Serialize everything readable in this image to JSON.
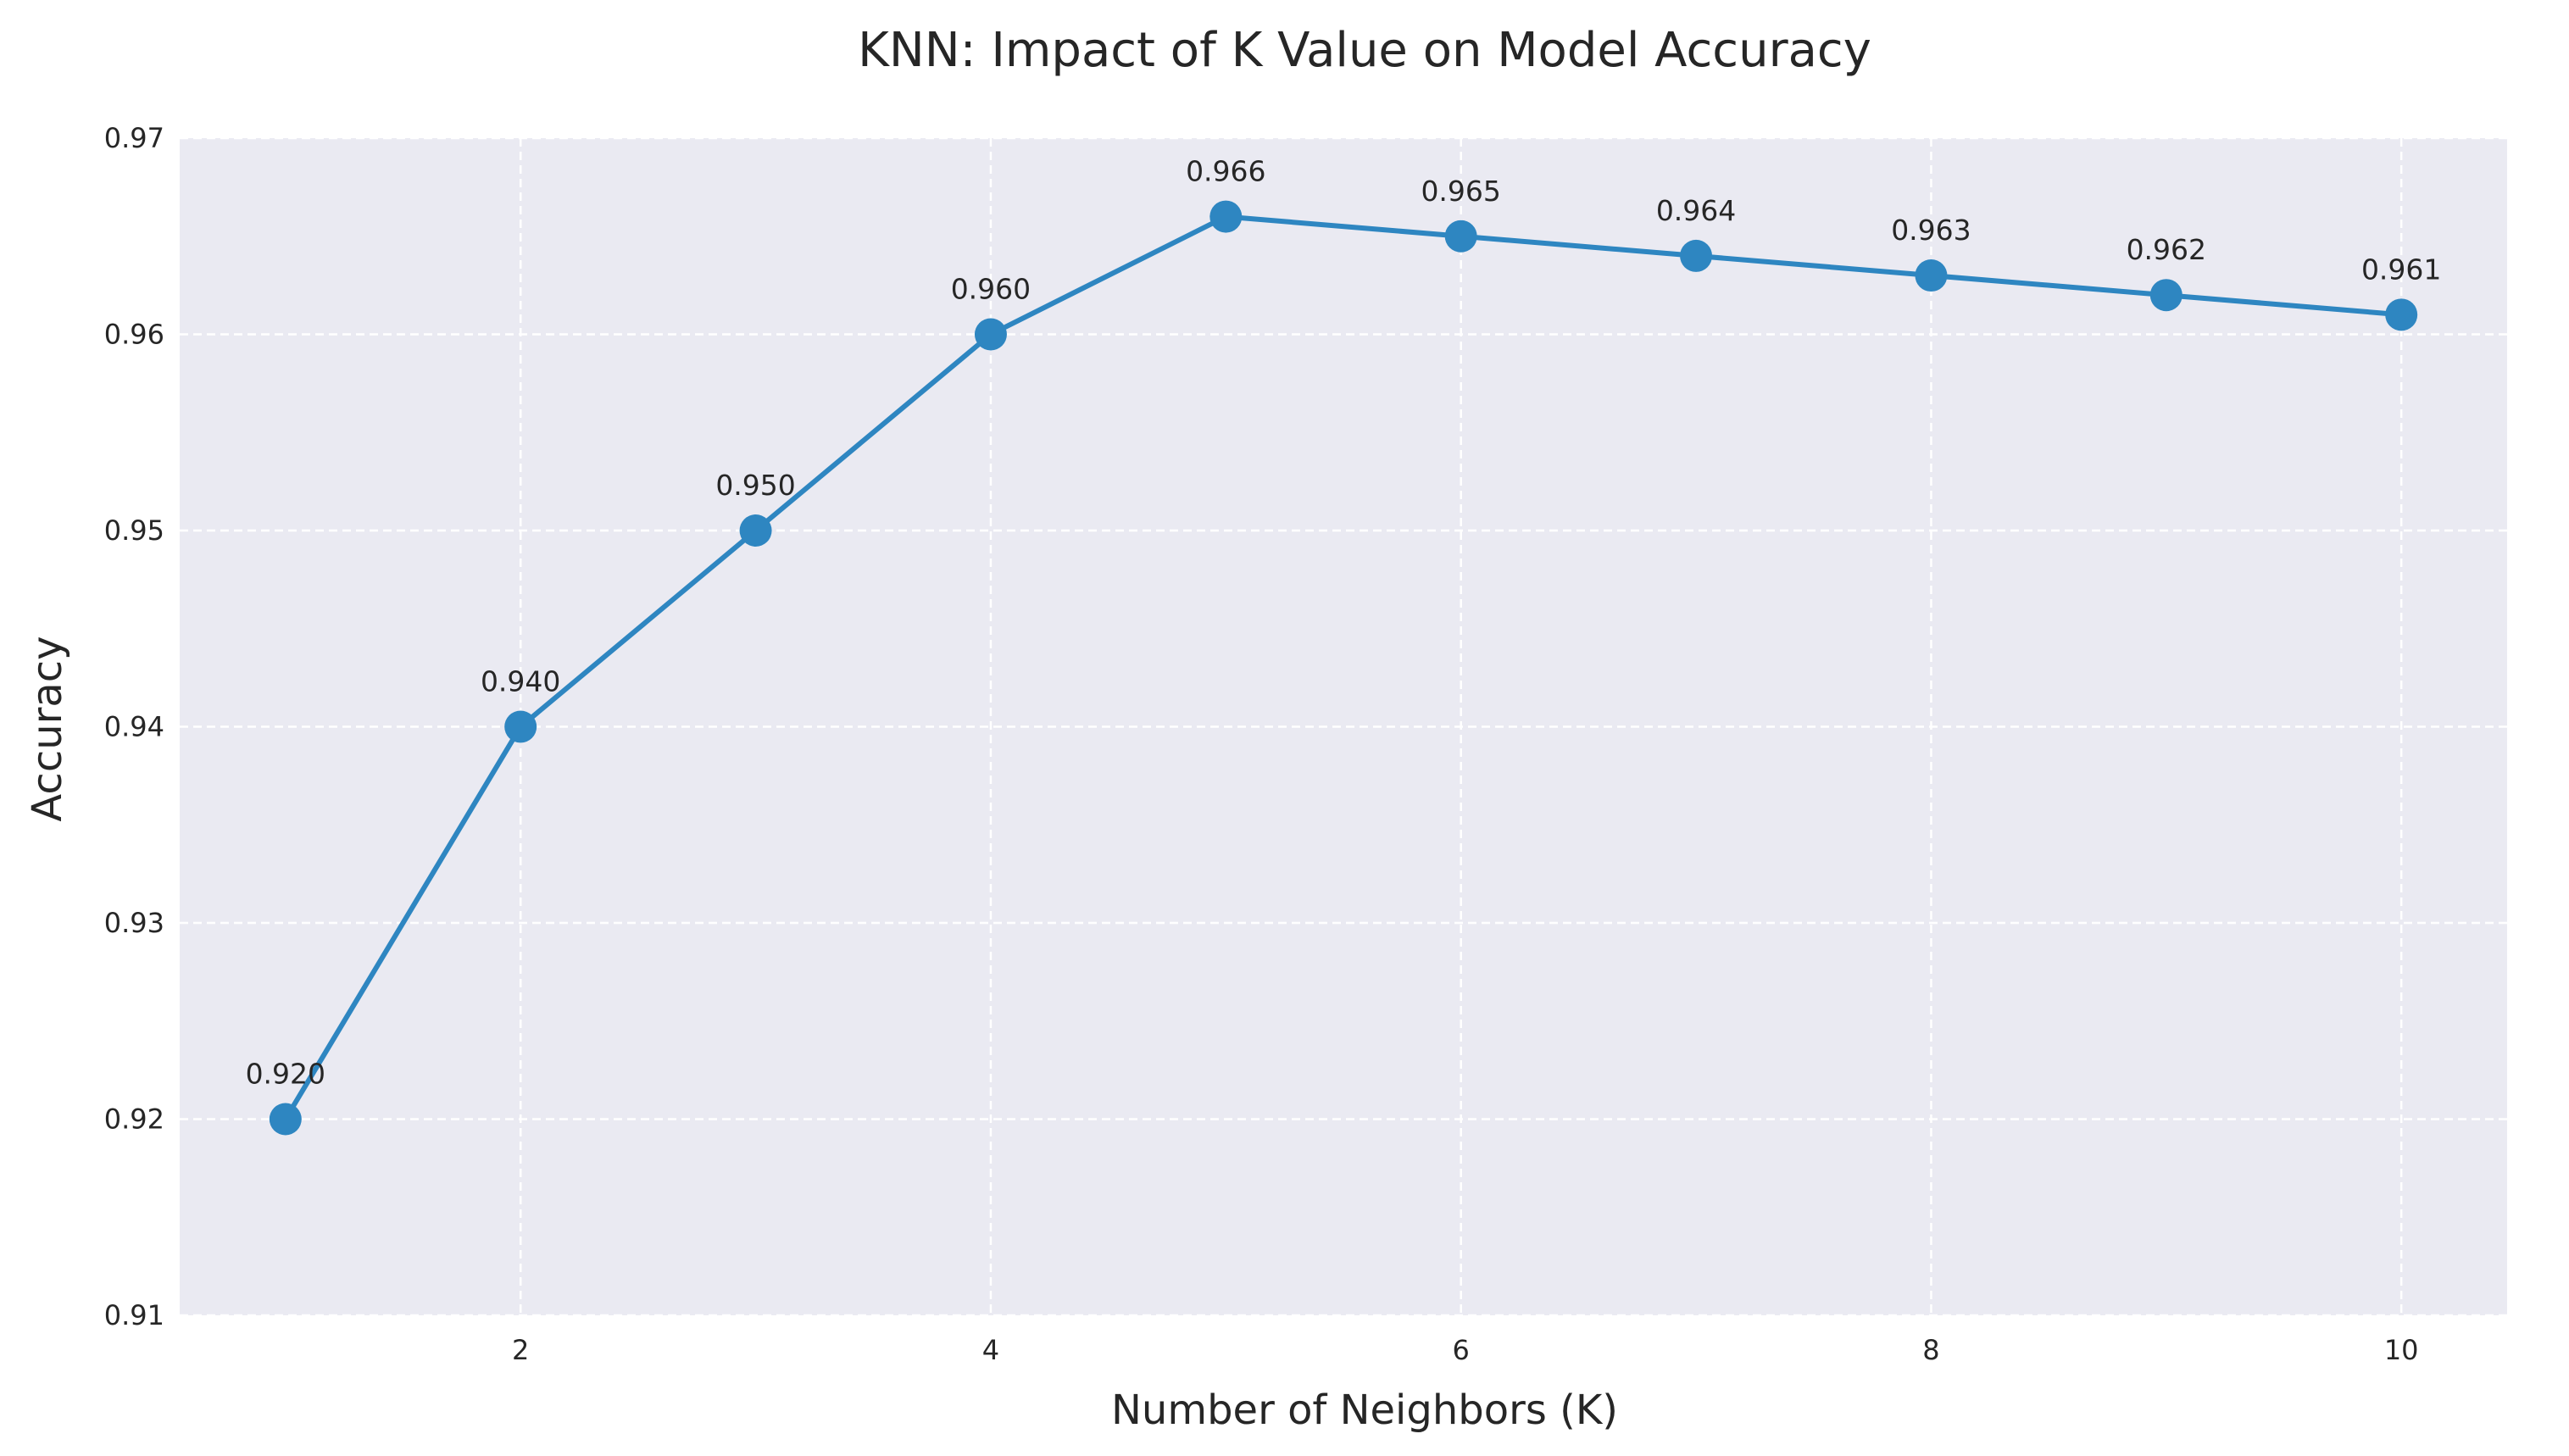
{
  "chart_data": {
    "type": "line",
    "title": "KNN: Impact of K Value on Model Accuracy",
    "xlabel": "Number of Neighbors (K)",
    "ylabel": "Accuracy",
    "x": [
      1,
      2,
      3,
      4,
      5,
      6,
      7,
      8,
      9,
      10
    ],
    "series": [
      {
        "values": [
          0.92,
          0.94,
          0.95,
          0.96,
          0.966,
          0.965,
          0.964,
          0.963,
          0.962,
          0.961
        ],
        "labels": [
          "0.920",
          "0.940",
          "0.950",
          "0.960",
          "0.966",
          "0.965",
          "0.964",
          "0.963",
          "0.962",
          "0.961"
        ]
      }
    ],
    "xlim": [
      0.55,
      10.45
    ],
    "ylim": [
      0.91,
      0.97
    ],
    "xticks": [
      2,
      4,
      6,
      8,
      10
    ],
    "xtick_labels": [
      "2",
      "4",
      "6",
      "8",
      "10"
    ],
    "yticks": [
      0.91,
      0.92,
      0.93,
      0.94,
      0.95,
      0.96,
      0.97
    ],
    "ytick_labels": [
      "0.91",
      "0.92",
      "0.93",
      "0.94",
      "0.95",
      "0.96",
      "0.97"
    ],
    "grid": true,
    "grid_style": "dashed",
    "colors": {
      "line": "#2e86c1",
      "plot_background": "#eaeaf2",
      "grid": "#ffffff",
      "text": "#262626"
    }
  }
}
